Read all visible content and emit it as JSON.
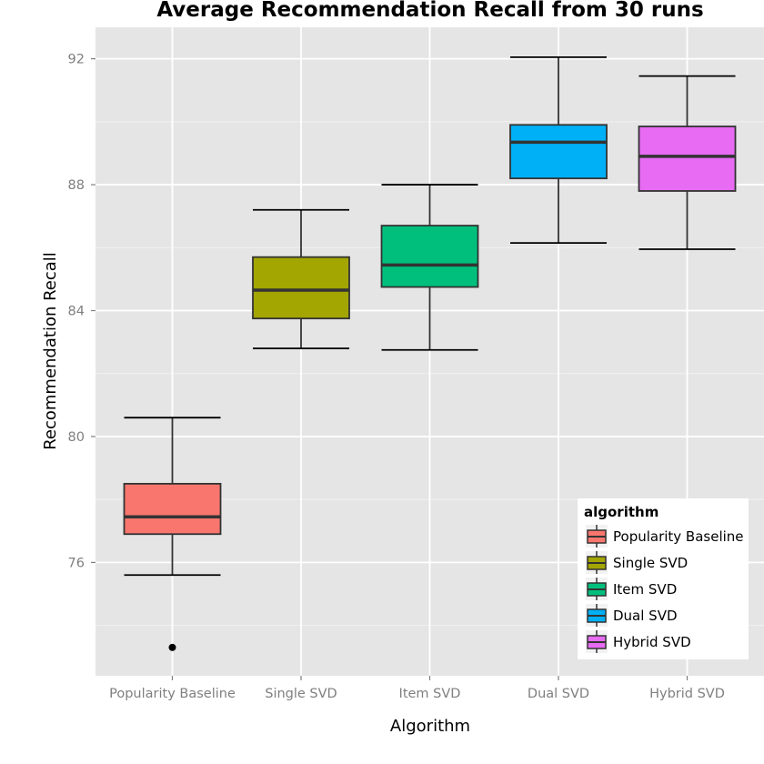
{
  "chart_data": {
    "type": "box",
    "title": "Average Recommendation Recall from 30 runs",
    "xlabel": "Algorithm",
    "ylabel": "Recommendation Recall",
    "ylim": [
      72.4,
      93.0
    ],
    "yticks": [
      76,
      80,
      84,
      88,
      92
    ],
    "yminor": [
      74,
      78,
      82,
      86,
      90
    ],
    "grid": true,
    "legend": {
      "title": "algorithm",
      "position": "bottom-right"
    },
    "categories": [
      "Popularity Baseline",
      "Single SVD",
      "Item SVD",
      "Dual SVD",
      "Hybrid SVD"
    ],
    "series": [
      {
        "name": "Popularity Baseline",
        "color": "#f8766d",
        "min": 75.6,
        "q1": 76.9,
        "median": 77.45,
        "q3": 78.5,
        "max": 80.6,
        "outliers": [
          73.3
        ]
      },
      {
        "name": "Single SVD",
        "color": "#a3a500",
        "min": 82.8,
        "q1": 83.75,
        "median": 84.65,
        "q3": 85.7,
        "max": 87.2,
        "outliers": []
      },
      {
        "name": "Item SVD",
        "color": "#00bf7d",
        "min": 82.75,
        "q1": 84.75,
        "median": 85.45,
        "q3": 86.7,
        "max": 88.0,
        "outliers": []
      },
      {
        "name": "Dual SVD",
        "color": "#00b0f6",
        "min": 86.15,
        "q1": 88.2,
        "median": 89.35,
        "q3": 89.9,
        "max": 92.05,
        "outliers": []
      },
      {
        "name": "Hybrid SVD",
        "color": "#e76bf3",
        "min": 85.95,
        "q1": 87.8,
        "median": 88.9,
        "q3": 89.85,
        "max": 91.45,
        "outliers": []
      }
    ]
  }
}
